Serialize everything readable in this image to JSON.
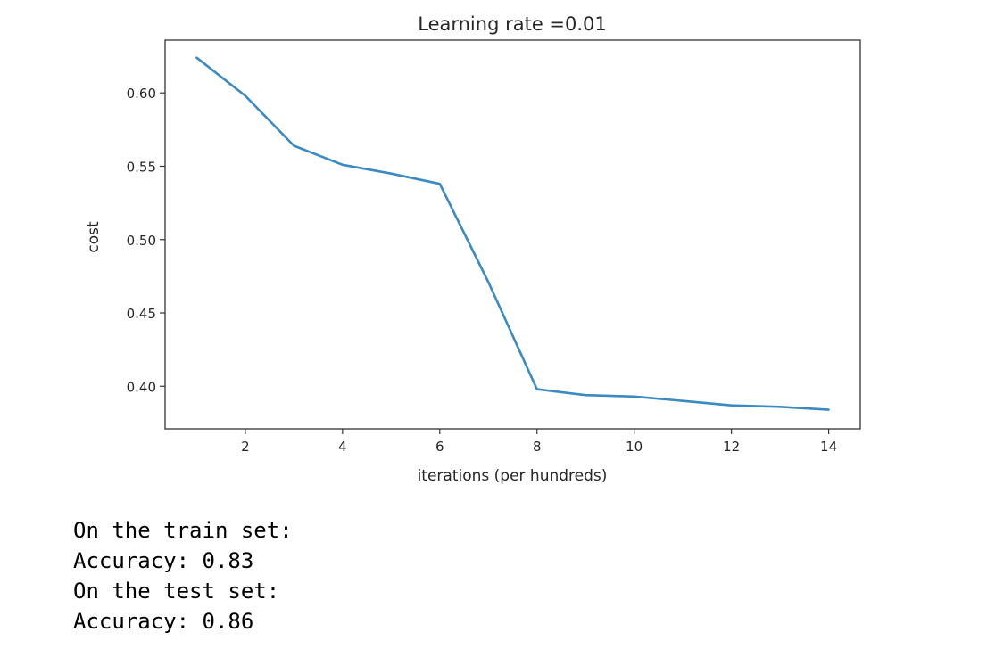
{
  "chart_data": {
    "type": "line",
    "title": "Learning rate =0.01",
    "xlabel": "iterations (per hundreds)",
    "ylabel": "cost",
    "xlim": [
      0.35,
      14.65
    ],
    "ylim": [
      0.371,
      0.636
    ],
    "xticks": [
      2,
      4,
      6,
      8,
      10,
      12,
      14
    ],
    "xtick_labels": [
      "2",
      "4",
      "6",
      "8",
      "10",
      "12",
      "14"
    ],
    "yticks": [
      0.4,
      0.45,
      0.5,
      0.55,
      0.6
    ],
    "ytick_labels": [
      "0.40",
      "0.45",
      "0.50",
      "0.55",
      "0.60"
    ],
    "grid": false,
    "line_color": "#3a8ac4",
    "x": [
      1,
      2,
      3,
      4,
      5,
      6,
      7,
      8,
      9,
      10,
      11,
      12,
      13,
      14
    ],
    "y": [
      0.624,
      0.598,
      0.564,
      0.551,
      0.545,
      0.538,
      0.471,
      0.398,
      0.394,
      0.393,
      0.39,
      0.387,
      0.386,
      0.384
    ]
  },
  "output": {
    "lines": [
      "On the train set:",
      "Accuracy: 0.83",
      "On the test set:",
      "Accuracy: 0.86"
    ]
  }
}
